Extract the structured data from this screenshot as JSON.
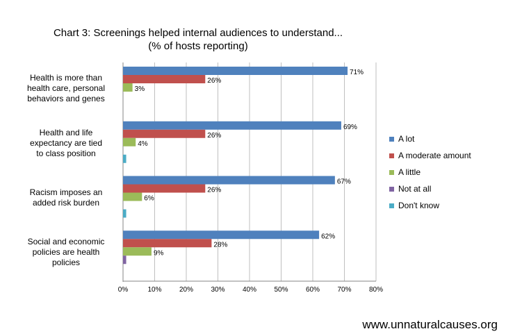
{
  "chart_data": {
    "type": "bar",
    "orientation": "horizontal",
    "title": "Chart 3: Screenings helped internal audiences to understand...",
    "subtitle": "(% of hosts reporting)",
    "categories": [
      "Health is more than health care, personal behaviors and genes",
      "Health and life expectancy are tied to class position",
      "Racism imposes an added risk burden",
      "Social and economic policies are health policies"
    ],
    "category_lines": [
      [
        "Health is more than",
        "health care, personal",
        "behaviors and genes"
      ],
      [
        "Health and life",
        "expectancy are tied",
        "to class position"
      ],
      [
        "Racism imposes an",
        "added risk burden"
      ],
      [
        "Social and economic",
        "policies are health",
        "policies"
      ]
    ],
    "series": [
      {
        "name": "A lot",
        "color": "#4f81bd",
        "values": [
          71,
          69,
          67,
          62
        ],
        "labels": [
          "71%",
          "69%",
          "67%",
          "62%"
        ]
      },
      {
        "name": "A moderate amount",
        "color": "#c0504d",
        "values": [
          26,
          26,
          26,
          28
        ],
        "labels": [
          "26%",
          "26%",
          "26%",
          "28%"
        ]
      },
      {
        "name": "A little",
        "color": "#9bbb59",
        "values": [
          3,
          4,
          6,
          9
        ],
        "labels": [
          "3%",
          "4%",
          "6%",
          "9%"
        ]
      },
      {
        "name": "Not at all",
        "color": "#8064a2",
        "values": [
          0,
          0,
          0,
          1
        ],
        "labels": [
          "",
          "",
          "",
          ""
        ]
      },
      {
        "name": "Don't know",
        "color": "#4bacc6",
        "values": [
          0,
          1,
          1,
          0
        ],
        "labels": [
          "",
          "",
          "",
          ""
        ]
      }
    ],
    "xlim": [
      0,
      80
    ],
    "xticks": [
      "0%",
      "10%",
      "20%",
      "30%",
      "40%",
      "50%",
      "60%",
      "70%",
      "80%"
    ],
    "grid": true,
    "legend_position": "right"
  },
  "source": "www.unnaturalcauses.org"
}
